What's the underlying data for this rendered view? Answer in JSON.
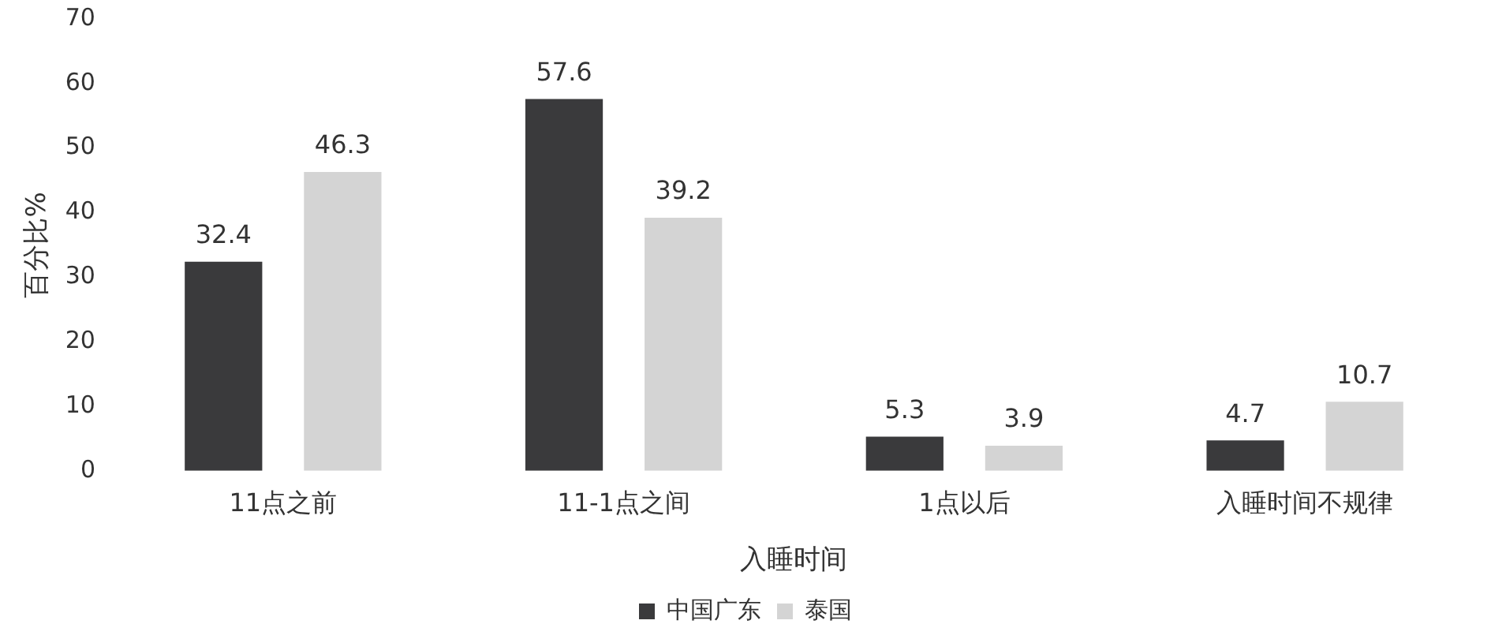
{
  "chart_data": {
    "type": "bar",
    "categories": [
      "11点之前",
      "11-1点之间",
      "1点以后",
      "入睡时间不规律"
    ],
    "series": [
      {
        "name": "中国广东",
        "color": "#3a3a3c",
        "values": [
          32.4,
          57.6,
          5.3,
          4.7
        ]
      },
      {
        "name": "泰国",
        "color": "#d4d4d4",
        "values": [
          46.3,
          39.2,
          3.9,
          10.7
        ]
      }
    ],
    "xlabel": "入睡时间",
    "ylabel": "百分比%",
    "ylim": [
      0,
      70
    ],
    "yticks": [
      0,
      10,
      20,
      30,
      40,
      50,
      60,
      70
    ],
    "data_labels": true,
    "grid": false,
    "legend": "bottom"
  }
}
